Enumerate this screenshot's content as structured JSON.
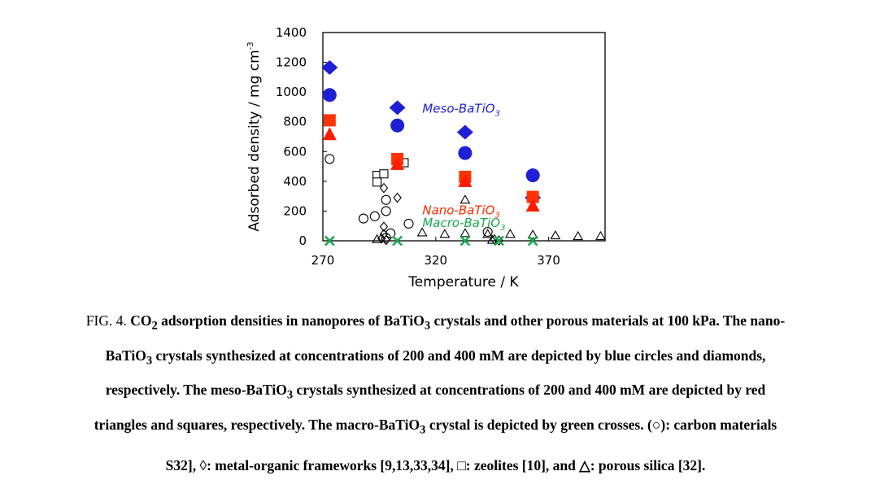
{
  "chart_data": {
    "type": "scatter",
    "xlabel": "Temperature / K",
    "ylabel": "Adsorbed density / mg cm",
    "ylabel_sup": "-3",
    "xlim": [
      270,
      395
    ],
    "ylim": [
      0,
      1400
    ],
    "xticks": [
      270,
      320,
      370
    ],
    "yticks": [
      0,
      200,
      400,
      600,
      800,
      1000,
      1200,
      1400
    ],
    "annotations": [
      {
        "text": "Meso-BaTiO",
        "sub": "3",
        "x": 313,
        "y": 890,
        "color": "#1f1fd6"
      },
      {
        "text": "Nano-BaTiO",
        "sub": "3",
        "x": 313,
        "y": 205,
        "color": "#ff2a00"
      },
      {
        "text": "Macro-BaTiO",
        "sub": "3",
        "x": 313,
        "y": 120,
        "color": "#1aa84e"
      }
    ],
    "series": [
      {
        "marker": "diamond-filled",
        "color": "#1f1fd6",
        "points": [
          [
            273,
            1165
          ],
          [
            303,
            895
          ],
          [
            333,
            730
          ],
          [
            363,
            290
          ]
        ]
      },
      {
        "marker": "circle-filled",
        "color": "#1f1fd6",
        "points": [
          [
            273,
            980
          ],
          [
            303,
            775
          ],
          [
            333,
            590
          ],
          [
            363,
            440
          ]
        ]
      },
      {
        "marker": "square-filled",
        "color": "#ff3300",
        "points": [
          [
            273,
            810
          ],
          [
            303,
            550
          ],
          [
            333,
            430
          ],
          [
            363,
            295
          ]
        ]
      },
      {
        "marker": "triangle-filled",
        "color": "#ff1a00",
        "points": [
          [
            273,
            715
          ],
          [
            303,
            515
          ],
          [
            333,
            400
          ],
          [
            363,
            235
          ]
        ]
      },
      {
        "marker": "cross",
        "color": "#1aa84e",
        "points": [
          [
            273,
            0
          ],
          [
            303,
            0
          ],
          [
            333,
            0
          ],
          [
            348,
            0
          ],
          [
            363,
            0
          ]
        ]
      },
      {
        "marker": "circle-open",
        "color": "#000000",
        "points": [
          [
            273,
            550
          ],
          [
            288,
            150
          ],
          [
            293,
            165
          ],
          [
            298,
            200
          ],
          [
            298,
            275
          ],
          [
            300,
            50
          ],
          [
            308,
            115
          ],
          [
            343,
            60
          ],
          [
            298,
            20
          ]
        ]
      },
      {
        "marker": "diamond-open",
        "color": "#000000",
        "points": [
          [
            297,
            355
          ],
          [
            303,
            290
          ],
          [
            297,
            95
          ],
          [
            297,
            45
          ],
          [
            296,
            15
          ],
          [
            298,
            5
          ],
          [
            348,
            2
          ],
          [
            346,
            10
          ]
        ]
      },
      {
        "marker": "square-open",
        "color": "#000000",
        "points": [
          [
            294,
            440
          ],
          [
            297,
            450
          ],
          [
            294,
            395
          ],
          [
            306,
            525
          ]
        ]
      },
      {
        "marker": "triangle-open",
        "color": "#000000",
        "points": [
          [
            333,
            275
          ],
          [
            314,
            55
          ],
          [
            324,
            45
          ],
          [
            333,
            50
          ],
          [
            343,
            45
          ],
          [
            353,
            45
          ],
          [
            363,
            40
          ],
          [
            373,
            35
          ],
          [
            383,
            30
          ],
          [
            393,
            30
          ],
          [
            294,
            10
          ],
          [
            345,
            5
          ]
        ]
      }
    ]
  },
  "caption": {
    "line1_lead": "FIG. 4.",
    "line1_pre": " CO",
    "line1_sub1": "2",
    "line1_mid": " adsorption densities in nanopores of BaTiO",
    "line1_sub2": "3",
    "line1_post": " crystals and other porous materials at 100 kPa. The nano-",
    "line2_pre": "BaTiO",
    "line2_sub": "3",
    "line2_post": " crystals synthesized at concentrations of 200 and 400 mM are depicted by blue circles and diamonds,",
    "line3_pre": "respectively. The meso-BaTiO",
    "line3_sub": "3",
    "line3_post": " crystals synthesized at concentrations of 200 and 400 mM are depicted by red",
    "line4_pre": "triangles and squares, respectively. The macro-BaTiO",
    "line4_sub": "3",
    "line4_post": " crystal is depicted by green crosses. (○): carbon materials",
    "line5": "S32], ◊: metal-organic frameworks [9,13,33,34], □: zeolites [10], and △: porous silica [32]."
  }
}
